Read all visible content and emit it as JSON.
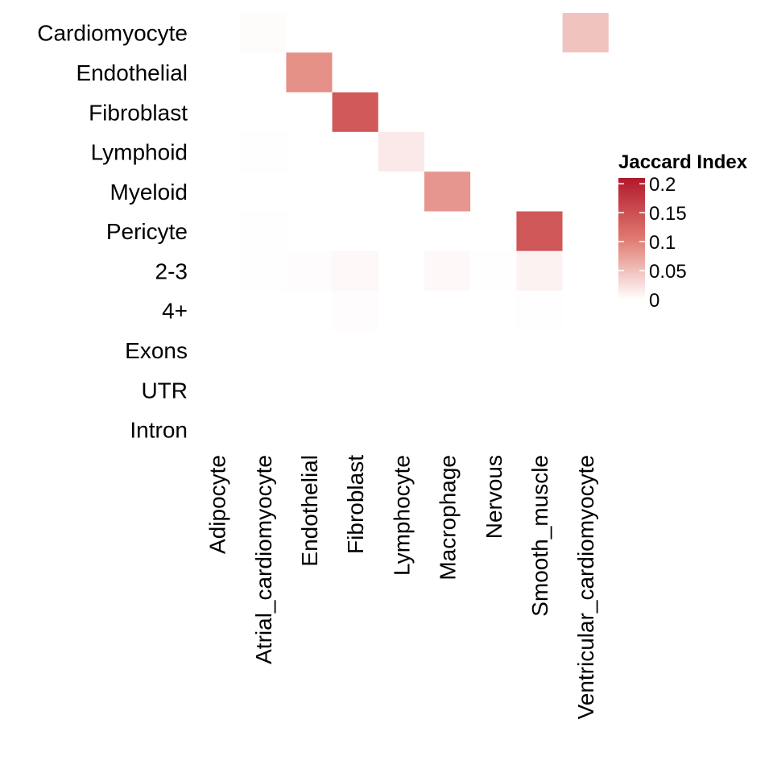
{
  "chart_data": {
    "type": "heatmap",
    "rows": [
      "Cardiomyocyte",
      "Endothelial",
      "Fibroblast",
      "Lymphoid",
      "Myeloid",
      "Pericyte",
      "2-3",
      "4+",
      "Exons",
      "UTR",
      "Intron"
    ],
    "columns": [
      "Adipocyte",
      "Atrial_cardiomyocyte",
      "Endothelial",
      "Fibroblast",
      "Lymphocyte",
      "Macrophage",
      "Nervous",
      "Smooth_muscle",
      "Ventricular_cardiomyocyte"
    ],
    "values": [
      [
        0,
        0.003,
        0,
        0,
        0,
        0,
        0,
        0,
        0.047
      ],
      [
        0,
        0,
        0.088,
        0,
        0,
        0,
        0,
        0,
        0
      ],
      [
        0,
        0,
        0,
        0.14,
        0,
        0,
        0,
        0,
        0
      ],
      [
        0,
        0.001,
        0,
        0,
        0.017,
        0,
        0,
        0,
        0
      ],
      [
        0,
        0,
        0,
        0,
        0,
        0.083,
        0,
        0,
        0
      ],
      [
        0,
        0.001,
        0,
        0,
        0,
        0,
        0,
        0.142,
        0
      ],
      [
        0,
        0.001,
        0.002,
        0.006,
        0,
        0.005,
        0.001,
        0.01,
        0
      ],
      [
        0,
        0,
        0,
        0.002,
        0,
        0,
        0,
        0.001,
        0
      ],
      [
        0,
        0,
        0,
        0,
        0,
        0,
        0,
        0,
        0
      ],
      [
        0,
        0,
        0,
        0,
        0,
        0,
        0,
        0,
        0
      ],
      [
        0,
        0,
        0,
        0,
        0,
        0,
        0,
        0,
        0
      ]
    ],
    "color_scale": {
      "low": "#ffffff",
      "mid": "#e07a70",
      "high": "#b2182b",
      "min": 0,
      "max": 0.21
    },
    "legend": {
      "title": "Jaccard Index",
      "ticks": [
        0.2,
        0.15,
        0.1,
        0.05,
        0
      ],
      "tick_labels": [
        "0.2",
        "0.15",
        "0.1",
        "0.05",
        "0"
      ],
      "position": "right"
    },
    "grid": false
  }
}
